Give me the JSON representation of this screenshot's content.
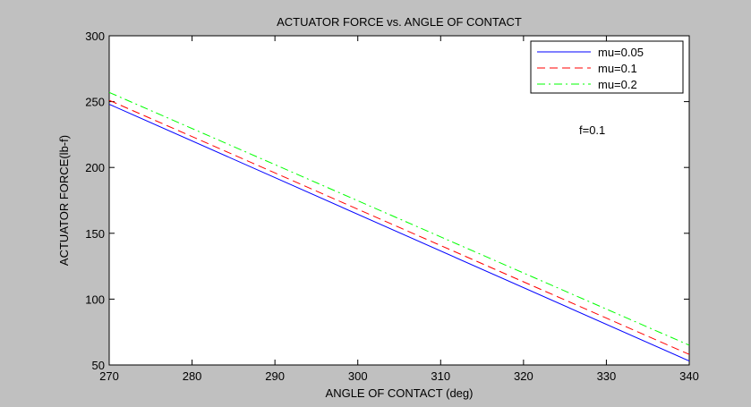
{
  "chart_data": {
    "type": "line",
    "title": "ACTUATOR FORCE vs. ANGLE OF CONTACT",
    "xlabel": "ANGLE OF CONTACT (deg)",
    "ylabel": "ACTUATOR FORCE(lb-f)",
    "xlim": [
      270,
      340
    ],
    "ylim": [
      50,
      300
    ],
    "xticks": [
      "270",
      "280",
      "290",
      "300",
      "310",
      "320",
      "330",
      "340"
    ],
    "yticks": [
      "50",
      "100",
      "150",
      "200",
      "250",
      "300"
    ],
    "grid": false,
    "legend_position": "top-right",
    "annotation": "f=0.1",
    "series": [
      {
        "name": "mu=0.05",
        "color": "#0000ff",
        "style": "solid",
        "x": [
          270,
          340
        ],
        "y": [
          248,
          53
        ]
      },
      {
        "name": "mu=0.1",
        "color": "#ff0000",
        "style": "dashed",
        "x": [
          270,
          340
        ],
        "y": [
          251,
          58
        ]
      },
      {
        "name": "mu=0.2",
        "color": "#00ff00",
        "style": "dashdot",
        "x": [
          270,
          340
        ],
        "y": [
          257,
          65
        ]
      }
    ]
  }
}
